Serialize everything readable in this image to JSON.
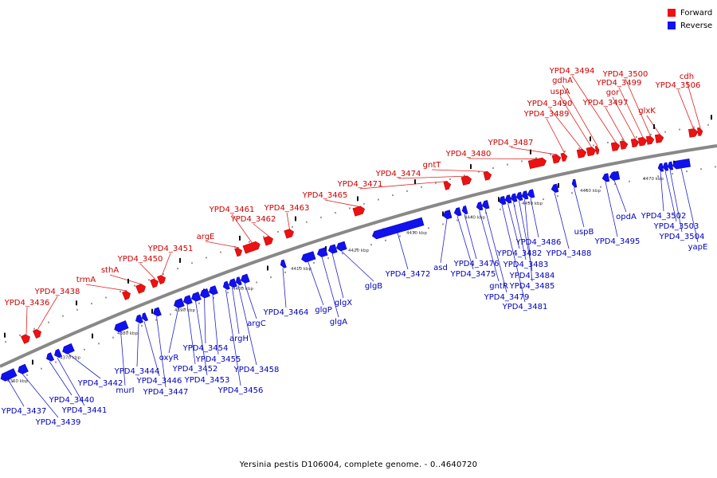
{
  "title": "Yersinia pestis D106004, complete genome. - 0..4640720",
  "legend": [
    {
      "label": "Forward",
      "color": "#ee1111"
    },
    {
      "label": "Reverse",
      "color": "#1111ee"
    }
  ],
  "colors": {
    "forward": "#ee1111",
    "reverse": "#1111ee",
    "backbone": "#888888",
    "leader_forward": "#dd2222",
    "leader_reverse": "#2222cc"
  },
  "ticks": [
    "4360 kbp",
    "4370 kbp",
    "4380 kbp",
    "4390 kbp",
    "4400 kbp",
    "4410 kbp",
    "4420 kbp",
    "4430 kbp",
    "4440 kbp",
    "4450 kbp",
    "4460 kbp",
    "4470 kbp"
  ],
  "forward_labels": [
    "YPD4_3436",
    "YPD4_3438",
    "trmA",
    "sthA",
    "YPD4_3450",
    "YPD4_3451",
    "argE",
    "YPD4_3461",
    "YPD4_3462",
    "YPD4_3463",
    "YPD4_3465",
    "YPD4_3471",
    "YPD4_3474",
    "gntT",
    "YPD4_3480",
    "YPD4_3487",
    "YPD4_3489",
    "YPD4_3490",
    "uspA",
    "gdhA",
    "YPD4_3494",
    "YPD4_3497",
    "gor",
    "YPD4_3499",
    "YPD4_3500",
    "glxK",
    "YPD4_3506",
    "cdh"
  ],
  "reverse_labels": [
    "YPD4_3437",
    "YPD4_3439",
    "YPD4_3440",
    "YPD4_3441",
    "YPD4_3442",
    "murI",
    "YPD4_3444",
    "YPD4_3446",
    "YPD4_3447",
    "oxyR",
    "YPD4_3452",
    "YPD4_3453",
    "YPD4_3454",
    "YPD4_3455",
    "YPD4_3456",
    "argH",
    "YPD4_3458",
    "argC",
    "YPD4_3464",
    "glgP",
    "glgA",
    "glgX",
    "glgB",
    "YPD4_3472",
    "asd",
    "YPD4_3475",
    "YPD4_3476",
    "gntR",
    "YPD4_3479",
    "YPD4_3481",
    "YPD4_3482",
    "YPD4_3483",
    "YPD4_3484",
    "YPD4_3485",
    "YPD4_3486",
    "YPD4_3488",
    "uspB",
    "YPD4_3495",
    "opdA",
    "YPD4_3502",
    "YPD4_3503",
    "YPD4_3504",
    "yapE"
  ]
}
